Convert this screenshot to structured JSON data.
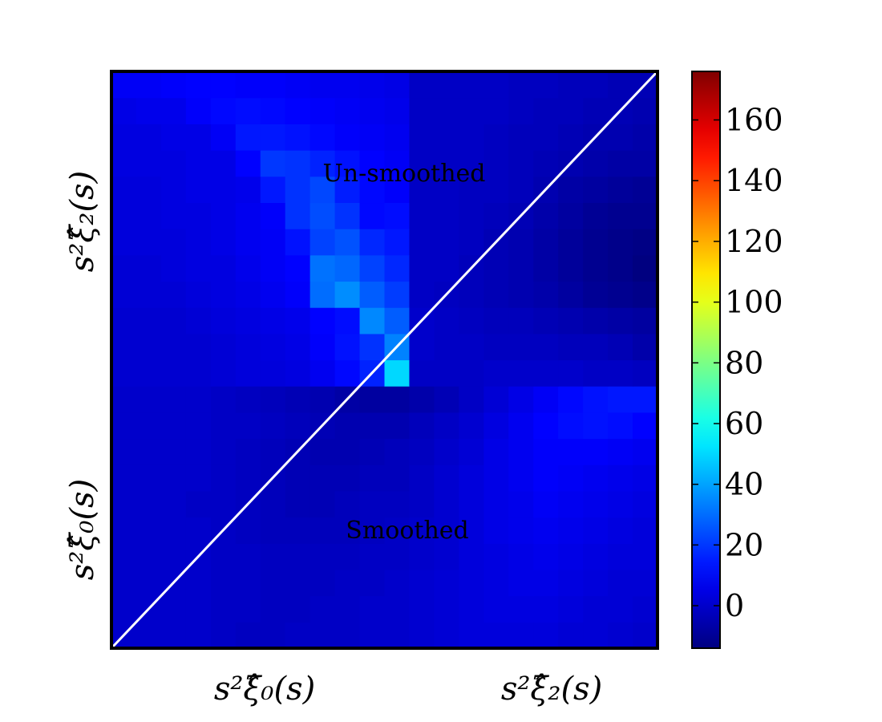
{
  "chart_data": {
    "type": "heatmap",
    "n": 22,
    "x_block_labels": [
      "s²ξ̂₀(s)",
      "s²ξ̂₂(s)"
    ],
    "y_block_labels": [
      "s²ξ̂₀(s)",
      "s²ξ̂₂(s)"
    ],
    "annotations": {
      "upper": "Un-smoothed",
      "lower": "Smoothed"
    },
    "colorbar": {
      "min": -14,
      "max": 176,
      "ticks": [
        0,
        20,
        40,
        60,
        80,
        100,
        120,
        140,
        160
      ]
    },
    "colormap": "jet",
    "diagonal_line": true,
    "values": [
      [
        0,
        0,
        0,
        0,
        -1,
        -2,
        -2,
        -1,
        -1,
        -1,
        0,
        0,
        1,
        2,
        3,
        3,
        3,
        3,
        2,
        2,
        1,
        0
      ],
      [
        0,
        0,
        0,
        0,
        -1,
        -1,
        -2,
        -2,
        -1,
        -1,
        0,
        0,
        1,
        2,
        3,
        4,
        4,
        4,
        3,
        2,
        2,
        1
      ],
      [
        0,
        0,
        0,
        0,
        -1,
        -1,
        -2,
        -2,
        -2,
        -1,
        -1,
        0,
        1,
        2,
        3,
        4,
        5,
        5,
        4,
        3,
        2,
        2
      ],
      [
        0,
        0,
        0,
        0,
        -1,
        -1,
        -2,
        -2,
        -2,
        -2,
        -1,
        -1,
        0,
        1,
        3,
        4,
        5,
        6,
        5,
        4,
        3,
        3
      ],
      [
        0,
        0,
        0,
        0,
        -1,
        -2,
        -3,
        -3,
        -3,
        -3,
        -2,
        -1,
        0,
        1,
        3,
        5,
        6,
        7,
        6,
        5,
        4,
        3
      ],
      [
        0,
        0,
        0,
        -1,
        -1,
        -2,
        -3,
        -4,
        -4,
        -3,
        -2,
        -2,
        -1,
        1,
        3,
        5,
        6,
        8,
        7,
        6,
        5,
        4
      ],
      [
        0,
        0,
        0,
        0,
        -1,
        -2,
        -3,
        -4,
        -4,
        -4,
        -3,
        -3,
        -1,
        1,
        3,
        5,
        7,
        9,
        8,
        7,
        6,
        5
      ],
      [
        0,
        0,
        0,
        0,
        -1,
        -2,
        -3,
        -4,
        -5,
        -5,
        -4,
        -3,
        -2,
        0,
        2,
        5,
        7,
        9,
        9,
        9,
        8,
        7
      ],
      [
        0,
        0,
        0,
        0,
        -1,
        -1,
        -2,
        -3,
        -4,
        -5,
        -5,
        -5,
        -3,
        -1,
        1,
        4,
        7,
        10,
        12,
        13,
        12,
        10
      ],
      [
        0,
        0,
        0,
        0,
        -1,
        -2,
        -3,
        -4,
        -5,
        -7,
        -8,
        -8,
        -6,
        -4,
        -1,
        2,
        5,
        8,
        11,
        13,
        14,
        14
      ],
      [
        1,
        1,
        1,
        1,
        2,
        3,
        3,
        4,
        7,
        11,
        16,
        50,
        -1,
        -1,
        -1,
        0,
        0,
        0,
        0,
        -1,
        -1,
        -2
      ],
      [
        1,
        1,
        1,
        1,
        2,
        3,
        4,
        5,
        9,
        13,
        19,
        34,
        0,
        -1,
        -1,
        -2,
        -2,
        -2,
        -3,
        -3,
        -4,
        -6
      ],
      [
        1,
        1,
        1,
        2,
        3,
        4,
        5,
        6,
        10,
        12,
        35,
        27,
        0,
        -1,
        -2,
        -3,
        -3,
        -4,
        -5,
        -6,
        -7,
        -8
      ],
      [
        2,
        2,
        2,
        3,
        4,
        5,
        7,
        9,
        30,
        36,
        27,
        21,
        -1,
        -2,
        -3,
        -4,
        -5,
        -6,
        -8,
        -10,
        -11,
        -12
      ],
      [
        2,
        2,
        3,
        4,
        4,
        6,
        8,
        10,
        31,
        29,
        22,
        17,
        -1,
        -1,
        -3,
        -4,
        -5,
        -7,
        -9,
        -11,
        -12,
        -14
      ],
      [
        3,
        3,
        3,
        4,
        5,
        7,
        8,
        13,
        22,
        25,
        17,
        14,
        -1,
        -1,
        -2,
        -4,
        -5,
        -7,
        -9,
        -11,
        -12,
        -13
      ],
      [
        3,
        3,
        4,
        4,
        5,
        7,
        9,
        19,
        24,
        19,
        11,
        12,
        -1,
        -1,
        -2,
        -3,
        -4,
        -6,
        -8,
        -10,
        -11,
        -11
      ],
      [
        3,
        3,
        4,
        5,
        5,
        6,
        14,
        19,
        23,
        15,
        11,
        9,
        -1,
        -1,
        -2,
        -2,
        -3,
        -5,
        -7,
        -8,
        -9,
        -10
      ],
      [
        4,
        4,
        4,
        5,
        5,
        10,
        20,
        19,
        16,
        13,
        10,
        8,
        -1,
        -1,
        -1,
        -2,
        -3,
        -4,
        -5,
        -6,
        -7,
        -7
      ],
      [
        4,
        4,
        5,
        5,
        8,
        14,
        14,
        13,
        11,
        9,
        8,
        7,
        -1,
        -1,
        -1,
        -2,
        -3,
        -3,
        -4,
        -5,
        -5,
        -6
      ],
      [
        5,
        6,
        6,
        9,
        11,
        12,
        11,
        10,
        9,
        8,
        7,
        6,
        -1,
        -1,
        -1,
        -1,
        -2,
        -3,
        -3,
        -4,
        -4,
        -5
      ],
      [
        8,
        8,
        9,
        10,
        10,
        9,
        9,
        8,
        7,
        7,
        6,
        5,
        -1,
        -1,
        -1,
        -1,
        -2,
        -2,
        -3,
        -3,
        -4,
        -4
      ]
    ]
  }
}
